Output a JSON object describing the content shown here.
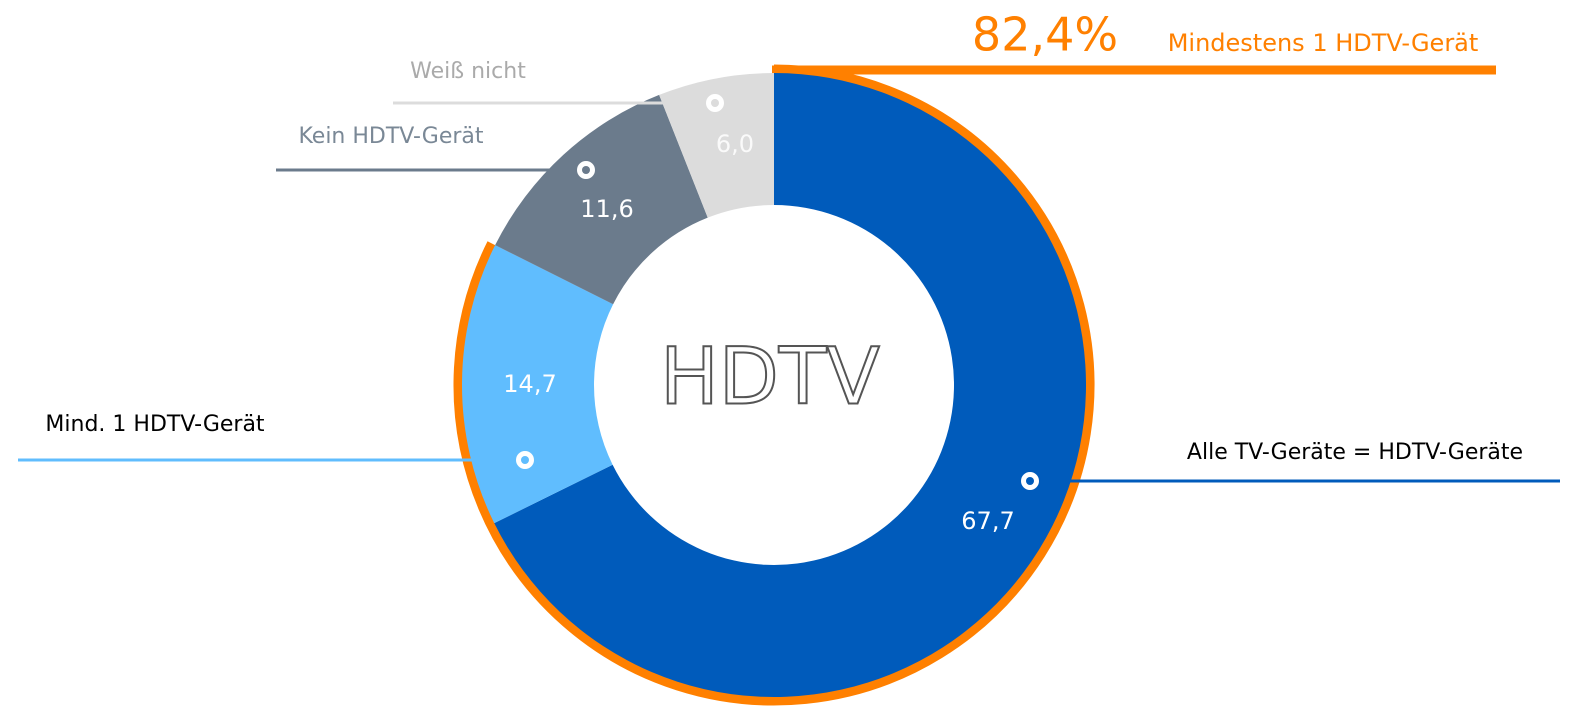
{
  "chart_data": {
    "type": "pie",
    "categories": [
      "Alle TV-Geräte = HDTV-Geräte",
      "Mind. 1 HDTV-Gerät",
      "Kein HDTV-Gerät",
      "Weiß nicht"
    ],
    "values": [
      67.7,
      14.7,
      11.6,
      6.0
    ],
    "value_labels": [
      "67,7",
      "14,7",
      "11,6",
      "6,0"
    ],
    "colors": [
      "#005bbb",
      "#60bdfe",
      "#6b7b8c",
      "#dcdcdc"
    ],
    "center_text": "HDTV",
    "annotation": {
      "value": 82.4,
      "label": "82,4%",
      "text": "Mindestens 1 HDTV-Gerät",
      "color": "#ff8000"
    }
  }
}
